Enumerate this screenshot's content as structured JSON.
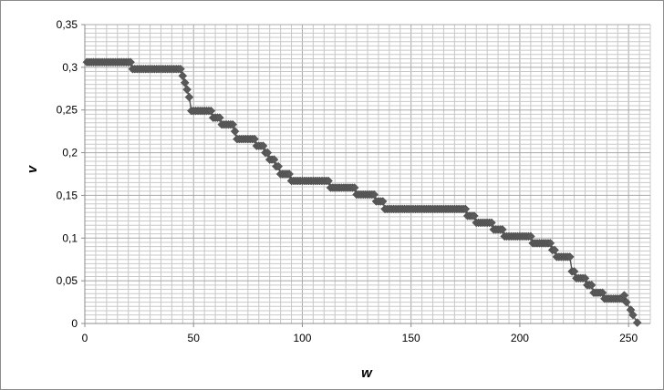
{
  "chart_data": {
    "type": "scatter",
    "title": "",
    "xlabel": "w",
    "ylabel": "v",
    "xlim": [
      0,
      260
    ],
    "ylim": [
      0,
      0.35
    ],
    "x_ticks": [
      "0",
      "50",
      "100",
      "150",
      "200",
      "250"
    ],
    "y_ticks": [
      "0",
      "0,05",
      "0,1",
      "0,15",
      "0,2",
      "0,25",
      "0,3",
      "0,35"
    ],
    "grid": true,
    "legend": "none",
    "marker": "diamond",
    "marker_color": "#595959",
    "line_color": "#595959",
    "gridline_color": "#c8c8c8",
    "series": [
      {
        "steps": [
          {
            "x0": 1,
            "x1": 21,
            "y": 0.306
          },
          {
            "x0": 22,
            "x1": 44,
            "y": 0.298
          },
          {
            "x0": 45,
            "x1": 45,
            "y": 0.29
          },
          {
            "x0": 46,
            "x1": 46,
            "y": 0.282
          },
          {
            "x0": 47,
            "x1": 47,
            "y": 0.274
          },
          {
            "x0": 48,
            "x1": 48,
            "y": 0.265
          },
          {
            "x0": 49,
            "x1": 58,
            "y": 0.249
          },
          {
            "x0": 59,
            "x1": 62,
            "y": 0.241
          },
          {
            "x0": 63,
            "x1": 68,
            "y": 0.233
          },
          {
            "x0": 69,
            "x1": 69,
            "y": 0.225
          },
          {
            "x0": 70,
            "x1": 78,
            "y": 0.216
          },
          {
            "x0": 79,
            "x1": 82,
            "y": 0.208
          },
          {
            "x0": 83,
            "x1": 84,
            "y": 0.2
          },
          {
            "x0": 85,
            "x1": 87,
            "y": 0.192
          },
          {
            "x0": 88,
            "x1": 89,
            "y": 0.184
          },
          {
            "x0": 90,
            "x1": 94,
            "y": 0.175
          },
          {
            "x0": 95,
            "x1": 112,
            "y": 0.167
          },
          {
            "x0": 113,
            "x1": 124,
            "y": 0.159
          },
          {
            "x0": 125,
            "x1": 133,
            "y": 0.151
          },
          {
            "x0": 134,
            "x1": 137,
            "y": 0.143
          },
          {
            "x0": 138,
            "x1": 175,
            "y": 0.134
          },
          {
            "x0": 176,
            "x1": 179,
            "y": 0.126
          },
          {
            "x0": 180,
            "x1": 187,
            "y": 0.118
          },
          {
            "x0": 188,
            "x1": 192,
            "y": 0.11
          },
          {
            "x0": 193,
            "x1": 205,
            "y": 0.102
          },
          {
            "x0": 206,
            "x1": 214,
            "y": 0.094
          },
          {
            "x0": 215,
            "x1": 216,
            "y": 0.086
          },
          {
            "x0": 217,
            "x1": 223,
            "y": 0.078
          },
          {
            "x0": 224,
            "x1": 225,
            "y": 0.061
          },
          {
            "x0": 226,
            "x1": 230,
            "y": 0.053
          },
          {
            "x0": 231,
            "x1": 233,
            "y": 0.045
          },
          {
            "x0": 234,
            "x1": 238,
            "y": 0.036
          },
          {
            "x0": 239,
            "x1": 247,
            "y": 0.029
          },
          {
            "x0": 248,
            "x1": 248,
            "y": 0.033
          },
          {
            "x0": 249,
            "x1": 249,
            "y": 0.025
          },
          {
            "x0": 251,
            "x1": 251,
            "y": 0.016
          },
          {
            "x0": 252,
            "x1": 252,
            "y": 0.01
          },
          {
            "x0": 254,
            "x1": 254,
            "y": 0.001
          }
        ]
      }
    ]
  }
}
